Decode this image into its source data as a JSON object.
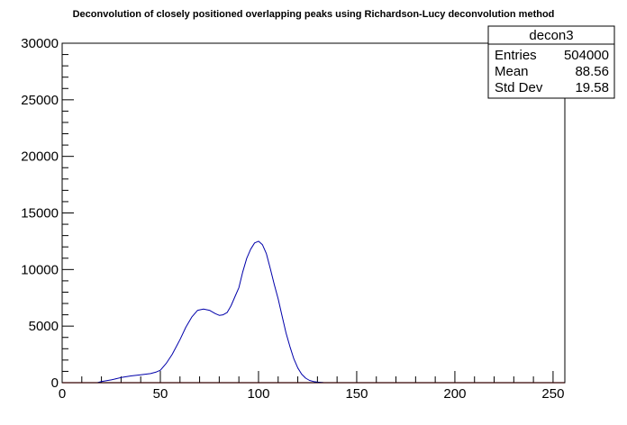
{
  "chart_data": {
    "type": "line",
    "title": "Deconvolution of closely positioned overlapping peaks using Richardson-Lucy deconvolution method",
    "xlabel": "",
    "ylabel": "",
    "xlim": [
      0,
      256
    ],
    "ylim": [
      0,
      30000
    ],
    "x_ticks": [
      "0",
      "50",
      "100",
      "150",
      "200",
      "250"
    ],
    "y_ticks": [
      "0",
      "5000",
      "10000",
      "15000",
      "20000",
      "25000",
      "30000"
    ],
    "colors": {
      "series": "#0000aa",
      "baseline": "#ff0000",
      "frame": "#000000"
    },
    "stats_box": {
      "name": "decon3",
      "rows": [
        {
          "label": "Entries",
          "value": "504000"
        },
        {
          "label": "Mean",
          "value": "88.56"
        },
        {
          "label": "Std Dev",
          "value": "19.58"
        }
      ]
    },
    "series": [
      {
        "x": [
          0,
          10,
          18,
          20,
          25,
          30,
          35,
          40,
          45,
          48,
          50,
          53,
          56,
          60,
          63,
          66,
          69,
          72,
          75,
          78,
          80,
          82,
          84,
          86,
          88,
          90,
          92,
          94,
          96,
          98,
          100,
          102,
          104,
          106,
          108,
          110,
          112,
          114,
          116,
          118,
          120,
          122,
          124,
          126,
          128,
          130,
          133,
          136,
          140,
          150,
          200,
          256
        ],
        "y": [
          0,
          0,
          0,
          100,
          250,
          450,
          600,
          700,
          800,
          950,
          1100,
          1700,
          2500,
          3800,
          4900,
          5800,
          6400,
          6500,
          6400,
          6100,
          5950,
          6000,
          6200,
          6800,
          7600,
          8400,
          9800,
          11000,
          11800,
          12350,
          12500,
          12200,
          11400,
          10100,
          8700,
          7400,
          5900,
          4400,
          3200,
          2100,
          1300,
          750,
          400,
          200,
          100,
          50,
          10,
          0,
          0,
          0,
          0,
          0
        ]
      }
    ]
  }
}
